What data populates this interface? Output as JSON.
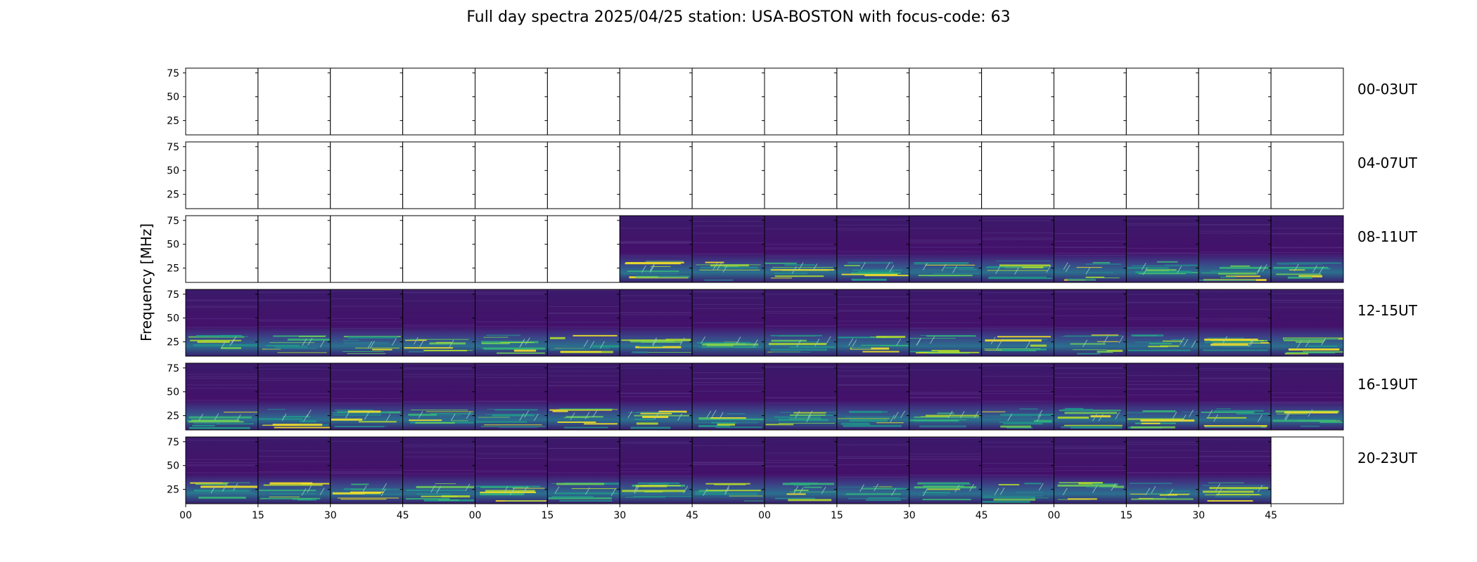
{
  "chart_data": {
    "type": "heatmap",
    "title": "Full day spectra 2025/04/25 station: USA-BOSTON with focus-code: 63",
    "ylabel": "Frequency [MHz]",
    "y_ticks": [
      "75",
      "50",
      "25"
    ],
    "y_tick_values": [
      75,
      50,
      25
    ],
    "ylim": [
      10,
      80
    ],
    "x_ticks": [
      "00",
      "15",
      "30",
      "45",
      "00",
      "15",
      "30",
      "45",
      "00",
      "15",
      "30",
      "45",
      "00",
      "15",
      "30",
      "45"
    ],
    "colormap": "viridis",
    "rows": [
      {
        "label": "00-03UT",
        "panels": [
          0,
          0,
          0,
          0,
          0,
          0,
          0,
          0,
          0,
          0,
          0,
          0,
          0,
          0,
          0,
          0
        ]
      },
      {
        "label": "04-07UT",
        "panels": [
          0,
          0,
          0,
          0,
          0,
          0,
          0,
          0,
          0,
          0,
          0,
          0,
          0,
          0,
          0,
          0
        ]
      },
      {
        "label": "08-11UT",
        "panels": [
          0,
          0,
          0,
          0,
          0,
          0,
          1,
          1,
          1,
          1,
          1,
          1,
          1,
          1,
          1,
          1
        ]
      },
      {
        "label": "12-15UT",
        "panels": [
          1,
          1,
          1,
          1,
          1,
          1,
          1,
          1,
          1,
          1,
          1,
          1,
          1,
          1,
          1,
          1
        ]
      },
      {
        "label": "16-19UT",
        "panels": [
          1,
          1,
          1,
          1,
          1,
          1,
          1,
          1,
          1,
          1,
          1,
          1,
          1,
          1,
          1,
          1
        ]
      },
      {
        "label": "20-23UT",
        "panels": [
          1,
          1,
          1,
          1,
          1,
          1,
          1,
          1,
          1,
          1,
          1,
          1,
          1,
          1,
          1,
          0
        ]
      }
    ]
  }
}
